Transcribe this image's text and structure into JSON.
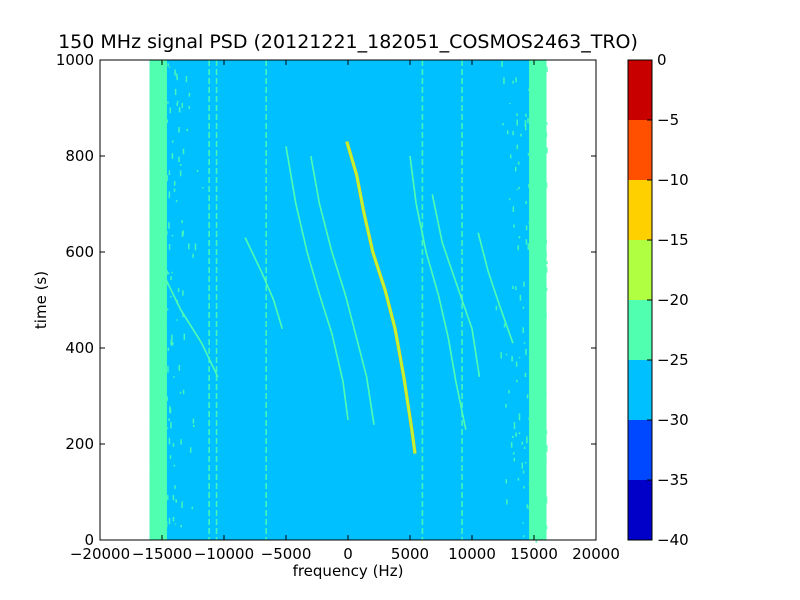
{
  "chart_data": {
    "type": "heatmap",
    "title": "150 MHz signal PSD (20121221_182051_COSMOS2463_TRO)",
    "xlabel": "frequency (Hz)",
    "ylabel": "time (s)",
    "xlim": [
      -20000,
      20000
    ],
    "ylim": [
      0,
      1000
    ],
    "x_ticks": [
      -20000,
      -15000,
      -10000,
      -5000,
      0,
      5000,
      10000,
      15000,
      20000
    ],
    "x_tick_labels": [
      "−20000",
      "−15000",
      "−10000",
      "−5000",
      "0",
      "5000",
      "10000",
      "15000",
      "20000"
    ],
    "y_ticks": [
      0,
      200,
      400,
      600,
      800,
      1000
    ],
    "y_tick_labels": [
      "0",
      "200",
      "400",
      "600",
      "800",
      "1000"
    ],
    "data_extent_frequency": [
      -16000,
      16000
    ],
    "colorbar": {
      "levels": [
        -40,
        -35,
        -30,
        -25,
        -20,
        -15,
        -10,
        -5,
        0
      ],
      "tick_labels": [
        "−40",
        "−35",
        "−30",
        "−25",
        "−20",
        "−15",
        "−10",
        "−5",
        "0"
      ],
      "colors": [
        "#0000c8",
        "#0048ff",
        "#00c0ff",
        "#50ffb0",
        "#b0ff40",
        "#ffd000",
        "#ff5000",
        "#c80000"
      ]
    },
    "background_level_color": "#00c0ff",
    "edge_band_color": "#50ffb0",
    "vertical_lines_frequency": [
      -11200,
      -10600,
      -6600,
      6000,
      9200
    ],
    "doppler_traces": [
      {
        "name": "main",
        "color": "#b0ff40",
        "points": [
          [
            -100,
            830
          ],
          [
            700,
            760
          ],
          [
            1300,
            680
          ],
          [
            2000,
            600
          ],
          [
            3000,
            520
          ],
          [
            3800,
            440
          ],
          [
            4500,
            340
          ],
          [
            5200,
            220
          ],
          [
            5400,
            180
          ]
        ]
      },
      {
        "name": "left-1",
        "color": "#50ffb0",
        "points": [
          [
            -5000,
            820
          ],
          [
            -4200,
            700
          ],
          [
            -3300,
            600
          ],
          [
            -2400,
            520
          ],
          [
            -1300,
            430
          ],
          [
            -400,
            330
          ],
          [
            0,
            250
          ]
        ]
      },
      {
        "name": "left-2",
        "color": "#50ffb0",
        "points": [
          [
            -3000,
            800
          ],
          [
            -2300,
            700
          ],
          [
            -1300,
            600
          ],
          [
            -200,
            510
          ],
          [
            700,
            420
          ],
          [
            1500,
            340
          ],
          [
            2100,
            240
          ]
        ]
      },
      {
        "name": "left-3",
        "color": "#50ffb0",
        "points": [
          [
            -8300,
            630
          ],
          [
            -7000,
            560
          ],
          [
            -6000,
            500
          ],
          [
            -5300,
            440
          ]
        ]
      },
      {
        "name": "right-1",
        "color": "#50ffb0",
        "points": [
          [
            5000,
            800
          ],
          [
            5500,
            700
          ],
          [
            6300,
            600
          ],
          [
            7300,
            510
          ],
          [
            8100,
            420
          ],
          [
            8700,
            330
          ],
          [
            9500,
            230
          ]
        ]
      },
      {
        "name": "right-2",
        "color": "#50ffb0",
        "points": [
          [
            6800,
            720
          ],
          [
            7600,
            620
          ],
          [
            8800,
            530
          ],
          [
            10000,
            440
          ],
          [
            10600,
            340
          ]
        ]
      },
      {
        "name": "right-3",
        "color": "#50ffb0",
        "points": [
          [
            10500,
            640
          ],
          [
            11300,
            560
          ],
          [
            12200,
            490
          ],
          [
            13300,
            410
          ]
        ]
      },
      {
        "name": "far-left",
        "color": "#50ffb0",
        "points": [
          [
            -15000,
            560
          ],
          [
            -13500,
            480
          ],
          [
            -11800,
            410
          ],
          [
            -10500,
            340
          ]
        ]
      }
    ]
  }
}
